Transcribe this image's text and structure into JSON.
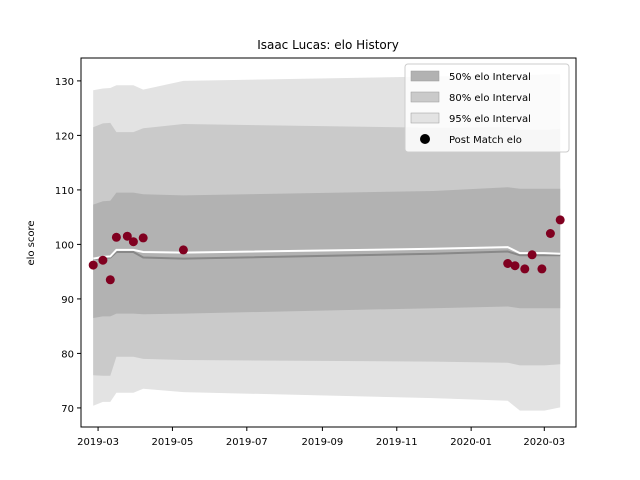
{
  "chart_data": {
    "type": "line",
    "title": "Isaac Lucas: elo History",
    "xlabel": "",
    "ylabel": "elo score",
    "xlim": [
      "2019-02-15",
      "2020-03-27"
    ],
    "ylim": [
      66.5,
      134.2
    ],
    "x_ticks": [
      "2019-03",
      "2019-05",
      "2019-07",
      "2019-09",
      "2019-11",
      "2020-01",
      "2020-03"
    ],
    "y_ticks": [
      70,
      80,
      90,
      100,
      110,
      120,
      130
    ],
    "grid": false,
    "legend_position": "top-right",
    "colors": {
      "band_95": "#e3e3e3",
      "band_80": "#cacaca",
      "band_50": "#b2b2b2",
      "mean_line": "#888888",
      "median_line": "#ffffff",
      "points": "#800020"
    },
    "legend": [
      {
        "label": "50% elo Interval",
        "kind": "patch",
        "color": "#b2b2b2"
      },
      {
        "label": "80% elo Interval",
        "kind": "patch",
        "color": "#cacaca"
      },
      {
        "label": "95% elo Interval",
        "kind": "patch",
        "color": "#e3e3e3"
      },
      {
        "label": "Post Match elo",
        "kind": "marker",
        "color": "#000000"
      }
    ],
    "band_x": [
      "2019-02-25",
      "2019-03-05",
      "2019-03-11",
      "2019-03-16",
      "2019-03-30",
      "2019-04-07",
      "2019-05-10",
      "2019-12-01",
      "2020-01-31",
      "2020-02-10",
      "2020-03-01",
      "2020-03-14"
    ],
    "bands": {
      "p95_upper": [
        128.3,
        128.6,
        128.7,
        129.2,
        129.2,
        128.4,
        130.0,
        130.8,
        131.0,
        131.0,
        131.2,
        131.2
      ],
      "p95_lower": [
        70.4,
        71.1,
        71.1,
        72.8,
        72.8,
        73.5,
        72.9,
        71.8,
        71.3,
        69.5,
        69.5,
        70.1
      ],
      "p80_upper": [
        121.5,
        122.2,
        122.3,
        120.6,
        120.6,
        121.3,
        122.1,
        121.4,
        121.5,
        121.0,
        121.0,
        121.2
      ],
      "p80_lower": [
        76.0,
        75.9,
        75.9,
        79.4,
        79.4,
        79.0,
        78.8,
        78.5,
        78.3,
        77.8,
        77.8,
        78.0
      ],
      "p50_upper": [
        107.3,
        107.9,
        108.0,
        109.5,
        109.5,
        109.2,
        109.0,
        109.8,
        110.5,
        110.2,
        110.2,
        110.2
      ],
      "p50_lower": [
        86.5,
        86.8,
        86.8,
        87.3,
        87.3,
        87.2,
        87.3,
        88.3,
        88.6,
        88.3,
        88.3,
        88.3
      ],
      "mean": [
        97.3,
        97.5,
        97.6,
        98.6,
        98.6,
        97.6,
        97.4,
        98.3,
        98.7,
        98.0,
        98.0,
        98.0
      ],
      "median": [
        97.4,
        97.7,
        97.8,
        99.0,
        99.0,
        98.6,
        98.5,
        99.2,
        99.5,
        98.4,
        98.4,
        98.3
      ]
    },
    "points": [
      {
        "x": "2019-02-25",
        "y": 96.2
      },
      {
        "x": "2019-03-05",
        "y": 97.1
      },
      {
        "x": "2019-03-11",
        "y": 93.5
      },
      {
        "x": "2019-03-16",
        "y": 101.3
      },
      {
        "x": "2019-03-25",
        "y": 101.5
      },
      {
        "x": "2019-03-30",
        "y": 100.5
      },
      {
        "x": "2019-04-07",
        "y": 101.2
      },
      {
        "x": "2019-05-10",
        "y": 99.0
      },
      {
        "x": "2020-01-31",
        "y": 96.5
      },
      {
        "x": "2020-02-06",
        "y": 96.1
      },
      {
        "x": "2020-02-14",
        "y": 95.5
      },
      {
        "x": "2020-02-20",
        "y": 98.1
      },
      {
        "x": "2020-02-28",
        "y": 95.5
      },
      {
        "x": "2020-03-06",
        "y": 102.0
      },
      {
        "x": "2020-03-14",
        "y": 104.5
      }
    ]
  }
}
